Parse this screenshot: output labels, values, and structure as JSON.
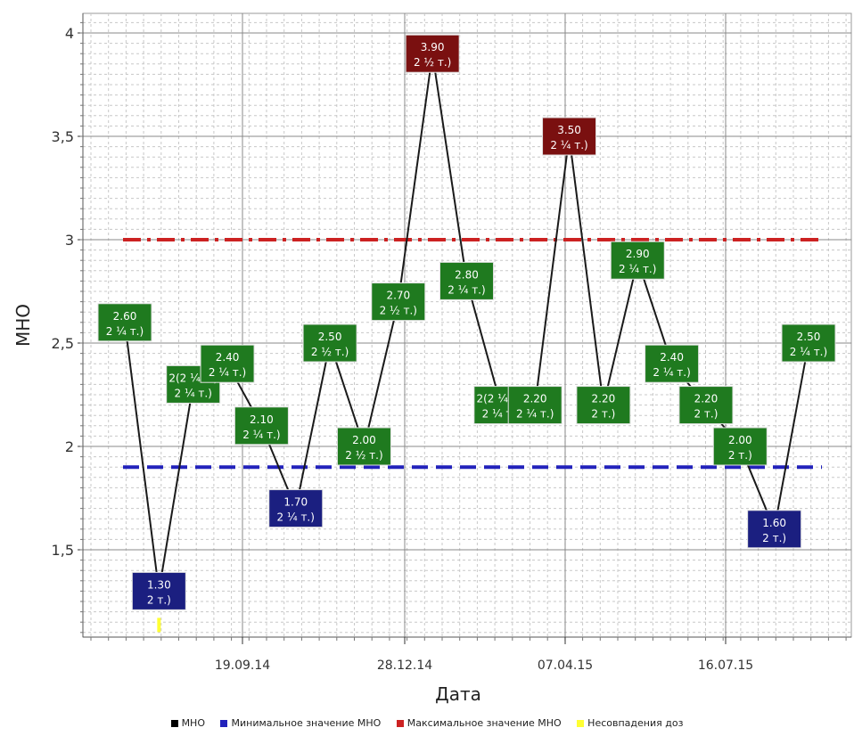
{
  "chart_data": {
    "type": "line",
    "title": "",
    "xlabel": "Дата",
    "ylabel": "МНО",
    "ylim": [
      1.1,
      4.05
    ],
    "yticks": [
      1.5,
      2,
      2.5,
      3,
      3.5,
      4
    ],
    "ytick_labels": [
      "1,5",
      "2",
      "2,5",
      "3",
      "3,5",
      "4"
    ],
    "xticks": [
      "19.09.14",
      "28.12.14",
      "07.04.15",
      "16.07.15"
    ],
    "grid": true,
    "legend_position": "bottom",
    "colors": {
      "line": "#1a1a1a",
      "normal_label": "#1f7a1f",
      "low_label": "#1b1f80",
      "high_label": "#7a1010",
      "min_line": "#2222bb",
      "max_line": "#cc2222",
      "mismatch": "#ffff33"
    },
    "points": [
      {
        "value": 2.6,
        "label": "2.60",
        "dose": "2 ¼ т.)",
        "category": "normal"
      },
      {
        "value": 1.3,
        "label": "1.30",
        "dose": "2 т.)",
        "category": "low",
        "mismatch": true
      },
      {
        "value": 2.3,
        "label": "2(2 ¼ т.)",
        "dose": "2 ¼ т.)",
        "category": "normal"
      },
      {
        "value": 2.4,
        "label": "2.40",
        "dose": "2 ¼ т.)",
        "category": "normal"
      },
      {
        "value": 2.1,
        "label": "2.10",
        "dose": "2 ¼ т.)",
        "category": "normal"
      },
      {
        "value": 1.7,
        "label": "1.70",
        "dose": "2 ¼ т.)",
        "category": "low"
      },
      {
        "value": 2.5,
        "label": "2.50",
        "dose": "2 ½ т.)",
        "category": "normal"
      },
      {
        "value": 2.0,
        "label": "2.00",
        "dose": "2 ½ т.)",
        "category": "normal"
      },
      {
        "value": 2.7,
        "label": "2.70",
        "dose": "2 ½ т.)",
        "category": "normal"
      },
      {
        "value": 3.9,
        "label": "3.90",
        "dose": "2 ½ т.)",
        "category": "high"
      },
      {
        "value": 2.8,
        "label": "2.80",
        "dose": "2 ¼ т.)",
        "category": "normal"
      },
      {
        "value": 2.2,
        "label": "2(2 ¼ т.)",
        "dose": "2 ¼ т.)",
        "category": "normal"
      },
      {
        "value": 2.2,
        "label": "2.20",
        "dose": "2 ¼ т.)",
        "category": "normal"
      },
      {
        "value": 3.5,
        "label": "3.50",
        "dose": "2 ¼ т.)",
        "category": "high"
      },
      {
        "value": 2.2,
        "label": "2.20",
        "dose": "2 т.)",
        "category": "normal"
      },
      {
        "value": 2.9,
        "label": "2.90",
        "dose": "2 ¼ т.)",
        "category": "normal"
      },
      {
        "value": 2.4,
        "label": "2.40",
        "dose": "2 ¼ т.)",
        "category": "normal"
      },
      {
        "value": 2.2,
        "label": "2.20",
        "dose": "2 т.)",
        "category": "normal"
      },
      {
        "value": 2.0,
        "label": "2.00",
        "dose": "2 т.)",
        "category": "normal"
      },
      {
        "value": 1.6,
        "label": "1.60",
        "dose": "2 т.)",
        "category": "low"
      },
      {
        "value": 2.5,
        "label": "2.50",
        "dose": "2 ¼ т.)",
        "category": "normal"
      }
    ],
    "series": [
      {
        "name": "МНО",
        "color": "#000000"
      },
      {
        "name": "Минимальное значение МНО",
        "value": 1.9,
        "color": "#2222bb"
      },
      {
        "name": "Максимальное значение МНО",
        "value": 3.0,
        "color": "#cc2222"
      },
      {
        "name": "Несовпадения доз",
        "color": "#ffff33"
      }
    ]
  }
}
